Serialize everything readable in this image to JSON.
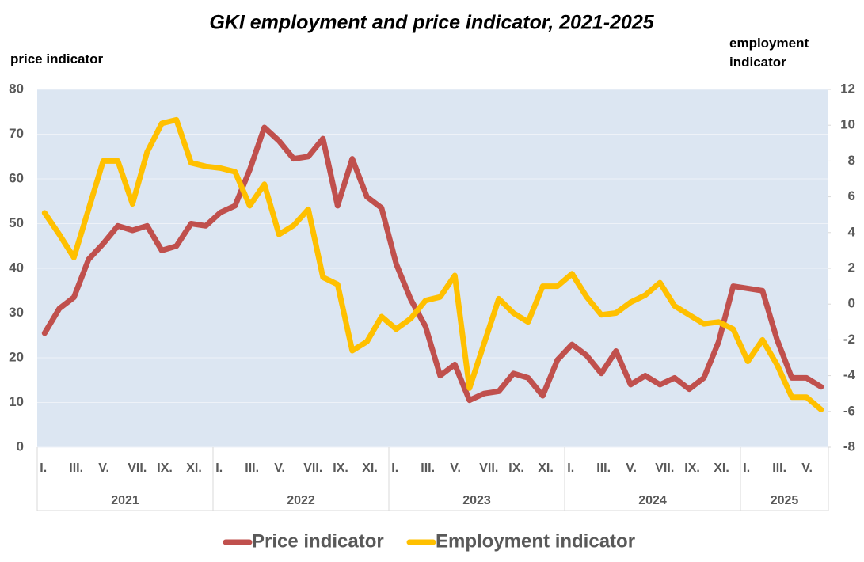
{
  "chart_data": {
    "type": "line",
    "title": "GKI employment and price indicator, 2021-2025",
    "y_label": "price indicator",
    "y2_label": "employment indicator",
    "categories": [
      "I.",
      null,
      "III.",
      null,
      "V.",
      null,
      "VII.",
      null,
      "IX.",
      null,
      "XI.",
      null,
      "I.",
      null,
      "III.",
      null,
      "V.",
      null,
      "VII.",
      null,
      "IX.",
      null,
      "XI.",
      null,
      "I.",
      null,
      "III.",
      null,
      "V.",
      null,
      "VII.",
      null,
      "IX.",
      null,
      "XI.",
      null,
      "I.",
      null,
      "III.",
      null,
      "V.",
      null,
      "VII.",
      null,
      "IX.",
      null,
      "XI.",
      null,
      "I.",
      null,
      "III.",
      null,
      "V.",
      null
    ],
    "years": [
      "2021",
      "2022",
      "2023",
      "2024",
      "2025"
    ],
    "ylim": [
      0,
      80
    ],
    "yticks": [
      0,
      10,
      20,
      30,
      40,
      50,
      60,
      70,
      80
    ],
    "y2lim": [
      -8,
      12
    ],
    "y2ticks": [
      -8,
      -6,
      -4,
      -2,
      0,
      2,
      4,
      6,
      8,
      10,
      12
    ],
    "grid": true,
    "legend": "bottom",
    "series": [
      {
        "name": "Price indicator",
        "color": "#c0504d",
        "values": [
          25.5,
          31,
          33.5,
          42,
          45.5,
          49.5,
          48.5,
          49.5,
          44,
          45,
          50,
          49.5,
          52.5,
          54,
          62,
          71.5,
          68.5,
          64.5,
          65,
          69,
          54,
          64.5,
          56,
          53.5,
          41,
          33,
          27,
          16,
          18.5,
          10.5,
          12,
          12.5,
          16.5,
          15.5,
          11.5,
          19.5,
          23,
          20.5,
          16.5,
          21.5,
          14,
          16,
          14,
          15.5,
          13,
          15.5,
          23.5,
          36,
          35.5,
          35,
          24,
          15.5,
          15.5,
          13.5
        ]
      },
      {
        "name": "Employment indicator",
        "color": "#ffc000",
        "axis": "y2",
        "values": [
          5.1,
          3.9,
          2.6,
          5.3,
          8.0,
          8.0,
          5.6,
          8.5,
          10.1,
          10.3,
          7.9,
          7.7,
          7.6,
          7.4,
          5.5,
          6.7,
          3.9,
          4.4,
          5.3,
          1.5,
          1.1,
          -2.6,
          -2.1,
          -0.7,
          -1.4,
          -0.8,
          0.2,
          0.4,
          1.6,
          -4.7,
          -2.2,
          0.3,
          -0.5,
          -1.0,
          1.0,
          1.0,
          1.7,
          0.4,
          -0.6,
          -0.5,
          0.1,
          0.5,
          1.2,
          -0.1,
          -0.6,
          -1.1,
          -1.0,
          -1.4,
          -3.2,
          -2.0,
          -3.4,
          -5.2,
          -5.2,
          -5.9
        ]
      }
    ]
  }
}
